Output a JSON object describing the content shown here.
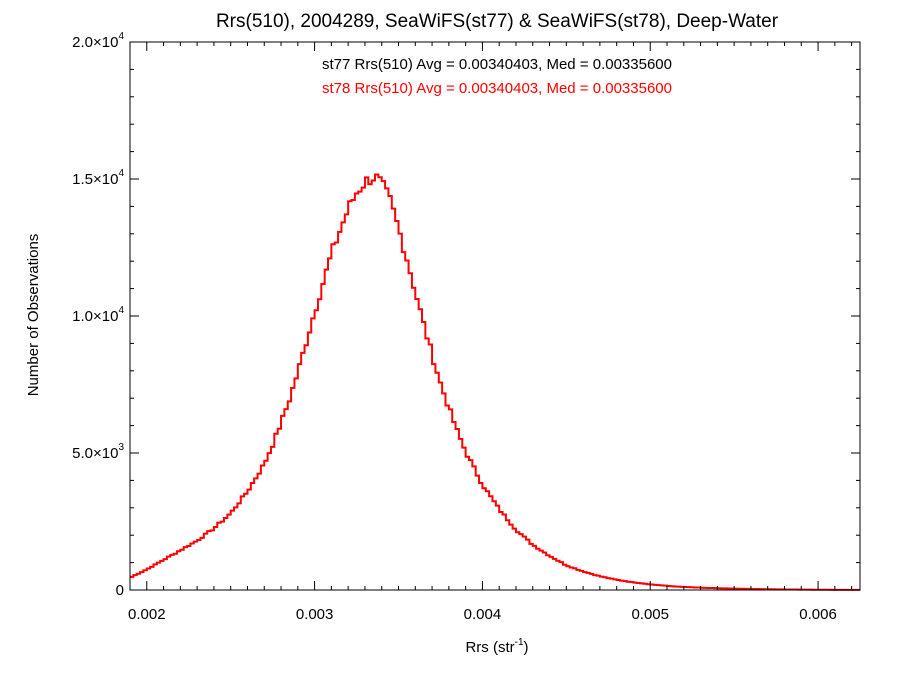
{
  "chart_data": {
    "type": "histogram",
    "title": "Rrs(510), 2004289, SeaWiFS(st77) & SeaWiFS(st78), Deep-Water",
    "xlabel": "Rrs (str",
    "xlabel_sup": "-1",
    "xlabel_suffix": ")",
    "ylabel": "Number of Observations",
    "xlim": [
      0.0019,
      0.00625
    ],
    "ylim": [
      0,
      20000
    ],
    "x_ticks": [
      {
        "value": 0.002,
        "label": "0.002"
      },
      {
        "value": 0.003,
        "label": "0.003"
      },
      {
        "value": 0.004,
        "label": "0.004"
      },
      {
        "value": 0.005,
        "label": "0.005"
      },
      {
        "value": 0.006,
        "label": "0.006"
      }
    ],
    "y_ticks": [
      {
        "value": 0,
        "mant": "0",
        "exp": ""
      },
      {
        "value": 5000,
        "mant": "5.0×10",
        "exp": "3"
      },
      {
        "value": 10000,
        "mant": "1.0×10",
        "exp": "4"
      },
      {
        "value": 15000,
        "mant": "1.5×10",
        "exp": "4"
      },
      {
        "value": 20000,
        "mant": "2.0×10",
        "exp": "4"
      }
    ],
    "annotations": [
      {
        "text": "st77 Rrs(510) Avg = 0.00340403, Med = 0.00335600",
        "color": "#000000"
      },
      {
        "text": "st78 Rrs(510) Avg = 0.00340403, Med = 0.00335600",
        "color": "#ff0000"
      }
    ],
    "bin_width": 2e-05,
    "series": [
      {
        "name": "st78",
        "color": "#ff0000",
        "x": [
          0.0019,
          0.002,
          0.0021,
          0.0022,
          0.0023,
          0.0024,
          0.0025,
          0.0026,
          0.0027,
          0.00275,
          0.0028,
          0.00285,
          0.0029,
          0.00295,
          0.003,
          0.00305,
          0.0031,
          0.00315,
          0.0032,
          0.00325,
          0.0033,
          0.00333,
          0.00336,
          0.0034,
          0.00345,
          0.0035,
          0.00355,
          0.0036,
          0.00365,
          0.0037,
          0.00375,
          0.0038,
          0.00385,
          0.0039,
          0.004,
          0.0041,
          0.0042,
          0.0043,
          0.0044,
          0.0045,
          0.0046,
          0.0047,
          0.0048,
          0.0049,
          0.005,
          0.0051,
          0.0052,
          0.0053,
          0.0054,
          0.0055,
          0.0056,
          0.0057,
          0.0058,
          0.0059,
          0.006,
          0.0061,
          0.00625
        ],
        "values": [
          450,
          750,
          1100,
          1450,
          1800,
          2250,
          2800,
          3600,
          4600,
          5300,
          6100,
          6950,
          7950,
          9050,
          10150,
          11200,
          12250,
          13100,
          13900,
          14500,
          14900,
          15000,
          15100,
          14800,
          14200,
          13200,
          12100,
          10900,
          9700,
          8600,
          7550,
          6650,
          5800,
          5050,
          3850,
          2950,
          2200,
          1650,
          1250,
          900,
          680,
          500,
          370,
          280,
          205,
          150,
          110,
          85,
          65,
          50,
          38,
          28,
          20,
          14,
          10,
          6,
          3
        ]
      }
    ]
  }
}
